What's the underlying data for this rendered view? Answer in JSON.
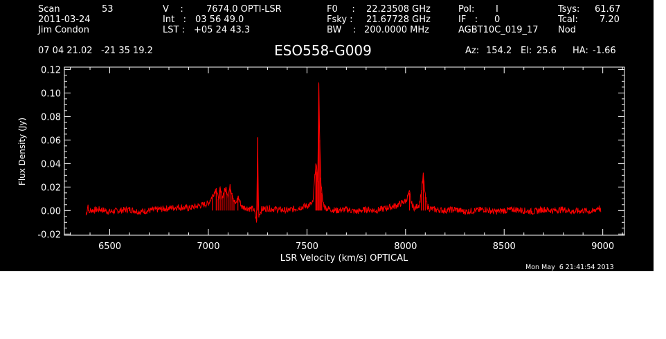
{
  "header": {
    "scan_label": "Scan",
    "scan_value": "53",
    "date": "2011-03-24",
    "observer": "Jim Condon",
    "v_label": "V    :",
    "v_value": "7674.0 OPTI-LSR",
    "int_label": "Int   :",
    "int_value": "03 56 49.0",
    "lst_label": "LST :",
    "lst_value": "+05 24 43.3",
    "f0_label": "F0     :",
    "f0_value": "22.23508 GHz",
    "fsky_label": "Fsky :",
    "fsky_value": "21.67728 GHz",
    "bw_label": "BW    :",
    "bw_value": "200.0000 MHz",
    "pol_label": "Pol:",
    "pol_value": "I",
    "if_label": "IF   :",
    "if_value": "0",
    "project": "AGBT10C_019_17",
    "tsys_label": "Tsys:",
    "tsys_value": "61.67",
    "tcal_label": "Tcal:",
    "tcal_value": "7.20",
    "mode": "Nod",
    "coords": "07 04 21.02   -21 35 19.2",
    "source": "ESO558-G009",
    "az_label": "Az:",
    "az_value": "154.2",
    "el_label": "El:",
    "el_value": "25.6",
    "ha_label": "HA:",
    "ha_value": "-1.66"
  },
  "timestamp": "Mon May  6 21:41:54 2013",
  "colors": {
    "background": "#000000",
    "foreground": "#ffffff",
    "trace": "#ff0000"
  },
  "chart_data": {
    "type": "line",
    "xlabel": "LSR Velocity (km/s) OPTICAL",
    "ylabel": "Flux Density (Jy)",
    "xlim": [
      6270,
      9110
    ],
    "ylim": [
      -0.021,
      0.122
    ],
    "xticks": [
      6500,
      7000,
      7500,
      8000,
      8500,
      9000
    ],
    "xtick_labels": [
      "6500",
      "7000",
      "7500",
      "8000",
      "8500",
      "9000"
    ],
    "yticks": [
      -0.02,
      0.0,
      0.02,
      0.04,
      0.06,
      0.08,
      0.1,
      0.12
    ],
    "ytick_labels": [
      "-0.02",
      "0.00",
      "0.02",
      "0.04",
      "0.06",
      "0.08",
      "0.10",
      "0.12"
    ],
    "grid": false,
    "series": [
      {
        "x": [
          6380,
          6390,
          6395,
          6400,
          6450,
          6500,
          6550,
          6600,
          6650,
          6700,
          6750,
          6800,
          6850,
          6900,
          6950,
          7000,
          7020,
          7040,
          7050,
          7060,
          7070,
          7080,
          7090,
          7100,
          7110,
          7120,
          7130,
          7140,
          7150,
          7170,
          7200,
          7230,
          7245,
          7250,
          7255,
          7270,
          7300,
          7350,
          7400,
          7450,
          7500,
          7530,
          7545,
          7550,
          7555,
          7560,
          7565,
          7570,
          7575,
          7580,
          7590,
          7600,
          7620,
          7650,
          7700,
          7750,
          7800,
          7850,
          7900,
          7950,
          8000,
          8020,
          8030,
          8040,
          8050,
          8060,
          8070,
          8080,
          8090,
          8100,
          8110,
          8120,
          8140,
          8200,
          8250,
          8300,
          8350,
          8400,
          8450,
          8500,
          8550,
          8600,
          8650,
          8700,
          8750,
          8800,
          8850,
          8900,
          8950,
          8980,
          8990
        ],
        "y": [
          -0.004,
          0.005,
          -0.003,
          0.0,
          0.001,
          -0.001,
          0.0,
          0.001,
          -0.001,
          0.0,
          0.001,
          0.002,
          0.003,
          0.002,
          0.004,
          0.006,
          0.012,
          0.019,
          0.01,
          0.018,
          0.011,
          0.016,
          0.019,
          0.013,
          0.02,
          0.015,
          0.009,
          0.005,
          0.012,
          0.003,
          0.002,
          0.001,
          -0.009,
          0.062,
          -0.004,
          0.001,
          0.002,
          0.001,
          0.0,
          0.002,
          0.004,
          0.006,
          0.04,
          0.033,
          0.025,
          0.108,
          0.06,
          0.028,
          0.015,
          0.008,
          0.003,
          0.002,
          0.001,
          0.0,
          0.001,
          -0.001,
          0.001,
          0.0,
          0.002,
          0.004,
          0.008,
          0.015,
          0.006,
          0.003,
          0.002,
          0.004,
          0.005,
          0.016,
          0.03,
          0.012,
          0.004,
          0.002,
          0.001,
          0.0,
          0.001,
          -0.001,
          0.0,
          0.001,
          -0.001,
          0.0,
          0.001,
          0.0,
          -0.001,
          0.001,
          0.0,
          0.001,
          -0.001,
          0.0,
          -0.001,
          0.003,
          -0.001
        ]
      }
    ]
  }
}
